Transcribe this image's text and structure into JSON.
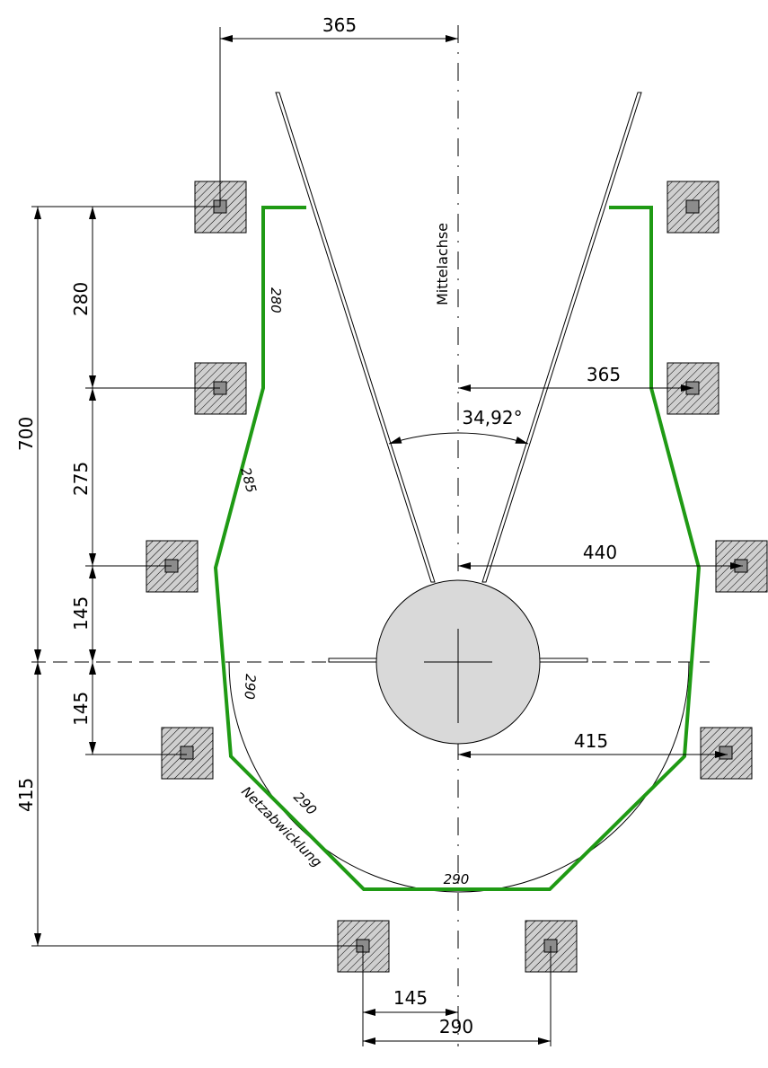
{
  "colors": {
    "net": "#1f9a14",
    "drum_fill": "#d9d9d9",
    "post_core": "#8c8c8c",
    "hatch": "#000000"
  },
  "labels": {
    "center_axis": "Mittelachse",
    "net_development": "Netzabwicklung",
    "angle": "34,92°"
  },
  "dimensions": {
    "top_offset": "365",
    "left_280": "280",
    "left_275": "275",
    "left_145_upper": "145",
    "left_145_lower": "145",
    "left_700": "700",
    "left_415": "415",
    "right_365": "365",
    "right_440": "440",
    "right_415": "415",
    "bottom_145": "145",
    "bottom_290": "290"
  },
  "segments": {
    "seg_280": "280",
    "seg_285": "285",
    "seg_290_left": "290",
    "seg_290_diag": "290",
    "seg_290_bottom": "290"
  }
}
